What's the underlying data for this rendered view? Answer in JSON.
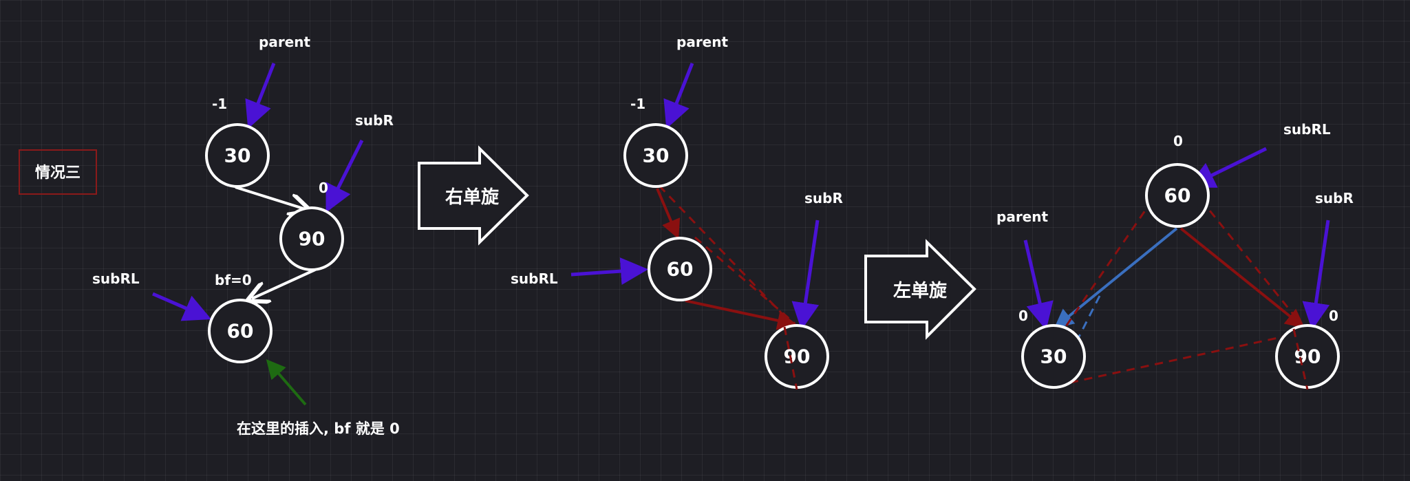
{
  "case_label": "情况三",
  "note": "在这里的插入, bf 就是 0",
  "arrow1_label": "右单旋",
  "arrow2_label": "左单旋",
  "colors": {
    "pointer": "#4a12d4",
    "red": "#8a1010",
    "blue": "#3a6fbf",
    "green": "#1e6b12",
    "case_border": "#8b1a1a"
  },
  "stage1": {
    "parent_label": "parent",
    "subR_label": "subR",
    "subRL_label": "subRL",
    "bf_parent": "-1",
    "bf_subR": "0",
    "bf_subRL": "bf=0",
    "n30": "30",
    "n90": "90",
    "n60": "60"
  },
  "stage2": {
    "parent_label": "parent",
    "subR_label": "subR",
    "subRL_label": "subRL",
    "bf_parent": "-1",
    "n30": "30",
    "n60": "60",
    "n90": "90"
  },
  "stage3": {
    "parent_label": "parent",
    "subR_label": "subR",
    "subRL_label": "subRL",
    "bf_60": "0",
    "bf_30": "0",
    "bf_90": "0",
    "n60": "60",
    "n30": "30",
    "n90": "90"
  }
}
